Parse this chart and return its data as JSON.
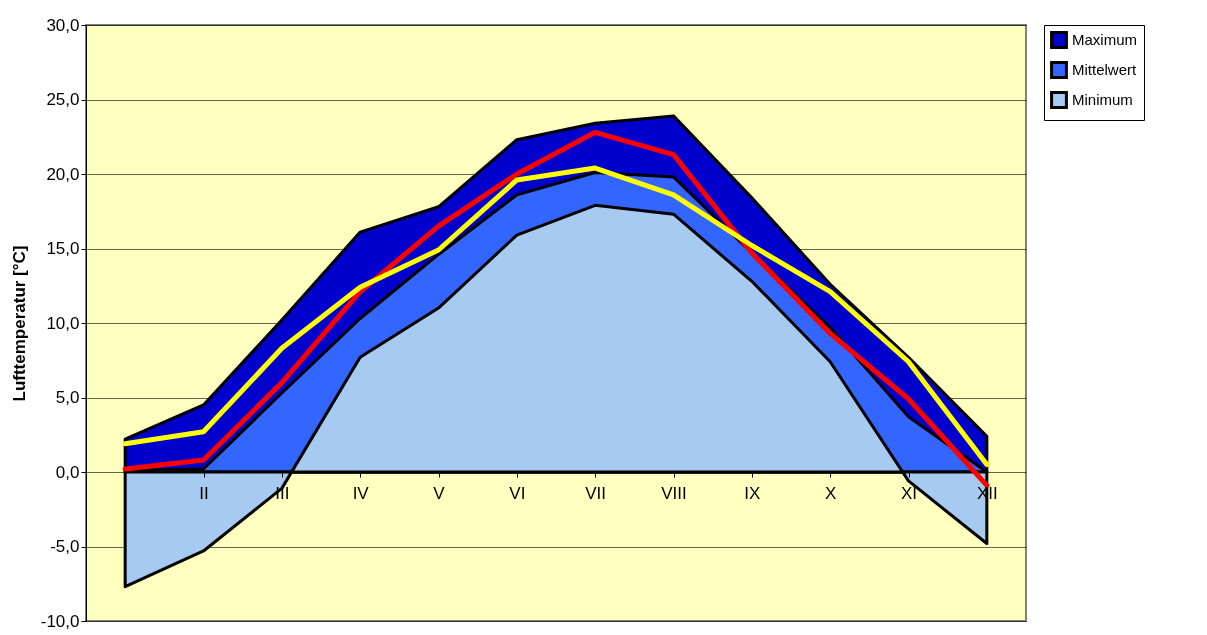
{
  "chart_data": {
    "type": "area",
    "ylabel": "Lufttemperatur [°C]",
    "categories": [
      null,
      "II",
      "III",
      "IV",
      "V",
      "VI",
      "VII",
      "VIII",
      "IX",
      "X",
      "XI",
      "XII"
    ],
    "series": [
      {
        "name": "Maximum",
        "color": "#0000cc",
        "values": [
          2.2,
          4.5,
          10.2,
          16.1,
          17.8,
          22.3,
          23.4,
          23.9,
          18.4,
          12.6,
          7.7,
          2.4
        ]
      },
      {
        "name": "Mittelwert",
        "color": "#3366ff",
        "values": [
          0.1,
          0.2,
          5.3,
          10.3,
          14.6,
          18.6,
          20.1,
          19.8,
          14.7,
          9.7,
          3.7,
          0.0
        ]
      },
      {
        "name": "Minimum",
        "color": "#a6caf0",
        "values": [
          -7.7,
          -5.3,
          -1.1,
          7.7,
          11.0,
          15.9,
          17.9,
          17.3,
          12.8,
          7.4,
          -0.6,
          -4.8
        ]
      },
      {
        "type": "line",
        "color": "#ff0000",
        "values": [
          0.2,
          0.8,
          6.0,
          12.1,
          16.5,
          20.0,
          22.8,
          21.3,
          14.7,
          9.3,
          4.9,
          -0.9
        ]
      },
      {
        "type": "line",
        "color": "#ffff00",
        "values": [
          1.9,
          2.7,
          8.3,
          12.4,
          14.9,
          19.6,
          20.4,
          18.6,
          15.2,
          12.1,
          7.4,
          0.5
        ]
      }
    ],
    "ylim": [
      -10,
      30
    ],
    "yticks": [
      {
        "value": -10,
        "label": "-10,0"
      },
      {
        "value": -5,
        "label": "-5,0"
      },
      {
        "value": 0,
        "label": "0,0"
      },
      {
        "value": 5,
        "label": "5,0"
      },
      {
        "value": 10,
        "label": "10,0"
      },
      {
        "value": 15,
        "label": "15,0"
      },
      {
        "value": 20,
        "label": "20,0"
      },
      {
        "value": 25,
        "label": "25,0"
      },
      {
        "value": 30,
        "label": "30,0"
      }
    ],
    "grid": "y",
    "legend": "right",
    "line_style": "solid",
    "marker": "none"
  }
}
